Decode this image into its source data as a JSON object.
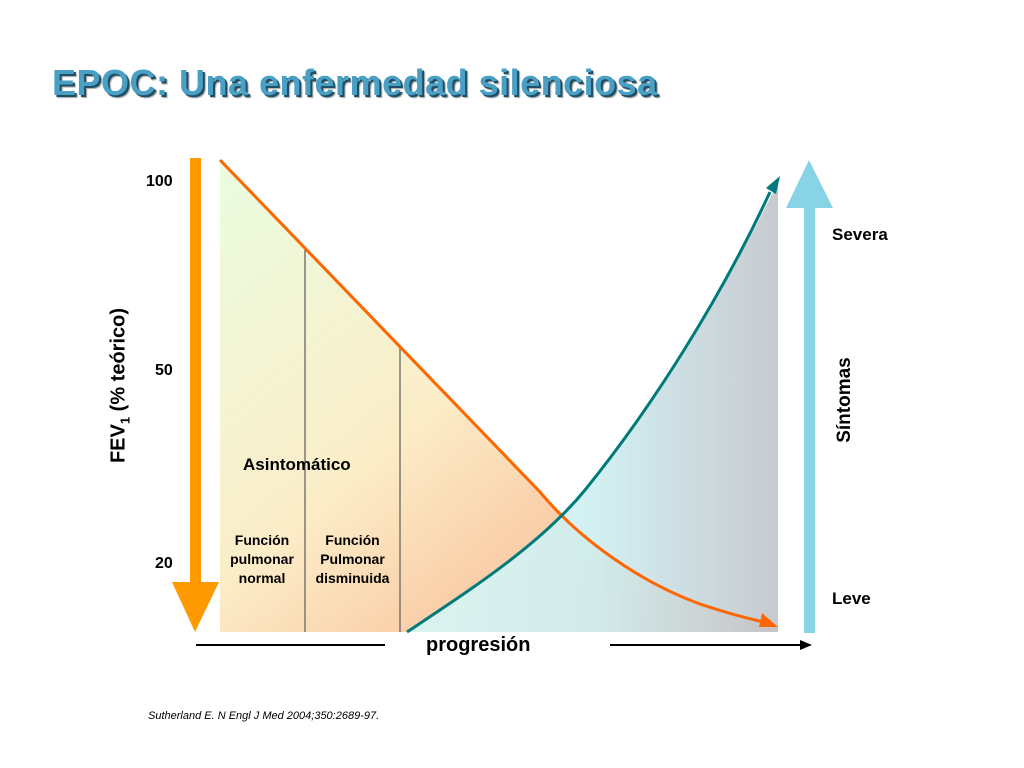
{
  "title": "EPOC: Una enfermedad silenciosa",
  "y_axis": {
    "label_main": "FEV",
    "label_sub": "1",
    "label_rest": " (% teórico)",
    "ticks": [
      "100",
      "50",
      "20"
    ]
  },
  "x_axis": {
    "label": "progresión"
  },
  "right_axis": {
    "label": "Síntomas",
    "top": "Severa",
    "bottom": "Leve"
  },
  "regions": {
    "asymptomatic": "Asintomático",
    "normal_line1": "Función",
    "normal_line2": "pulmonar",
    "normal_line3": "normal",
    "reduced_line1": "Función",
    "reduced_line2": "Pulmonar",
    "reduced_line3": "disminuida"
  },
  "citation": "Sutherland E.  N Engl J Med 2004;350:2689-97.",
  "colors": {
    "title": "#4aa0c4",
    "fev_arrow": "#ff9900",
    "fev_curve": "#ff6600",
    "symptom_curve": "#007a7a",
    "symptom_arrow": "#88d4e6"
  }
}
